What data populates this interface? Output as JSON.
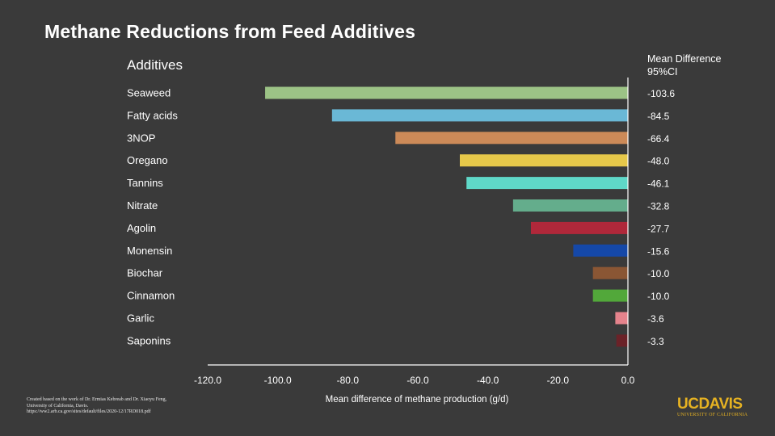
{
  "title": "Methane Reductions from Feed Additives",
  "colors": {
    "background": "#3a3a3a",
    "text": "#ffffff",
    "axis": "#ffffff",
    "logo": "#e6b222"
  },
  "chart_data": {
    "type": "bar",
    "orientation": "horizontal",
    "title": "Methane Reductions from Feed Additives",
    "category_header": "Additives",
    "value_header": "Mean Difference 95%CI",
    "xlabel": "Mean difference of methane production (g/d)",
    "xlim": [
      -120,
      0
    ],
    "xticks": [
      "-120.0",
      "-100.0",
      "-80.0",
      "-60.0",
      "-40.0",
      "-20.0",
      "0.0"
    ],
    "grid": false,
    "categories": [
      "Seaweed",
      "Fatty acids",
      "3NOP",
      "Oregano",
      "Tannins",
      "Nitrate",
      "Agolin",
      "Monensin",
      "Biochar",
      "Cinnamon",
      "Garlic",
      "Saponins"
    ],
    "values": [
      -103.6,
      -84.5,
      -66.4,
      -48.0,
      -46.1,
      -32.8,
      -27.7,
      -15.6,
      -10.0,
      -10.0,
      -3.6,
      -3.3
    ],
    "value_labels": [
      "-103.6",
      "-84.5",
      "-66.4",
      "-48.0",
      "-46.1",
      "-32.8",
      "-27.7",
      "-15.6",
      "-10.0",
      "-10.0",
      "-3.6",
      "-3.3"
    ],
    "bar_colors": [
      "#9cc386",
      "#6ab8d6",
      "#cc8a58",
      "#e6c84a",
      "#5fd8c8",
      "#64ad8c",
      "#b0283a",
      "#1548a8",
      "#8a5634",
      "#52a83a",
      "#e5838c",
      "#6b2228"
    ]
  },
  "credit": {
    "line1": "Created based on the work of Dr. Ermias Kebreab and Dr. Xiaoyu Feng,",
    "line2": "University of California, Davis.",
    "line3": "https://ww2.arb.ca.gov/sites/default/files/2020-12/17RD018.pdf"
  },
  "logo": {
    "main": "UCDAVIS",
    "sub": "UNIVERSITY OF CALIFORNIA"
  }
}
